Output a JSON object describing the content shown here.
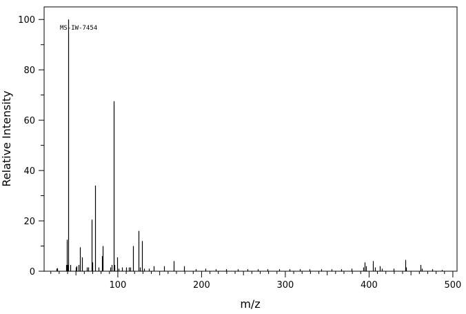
{
  "chart_data": {
    "type": "bar",
    "title": "",
    "annotation": "MS-IW-7454",
    "xlabel": "m/z",
    "ylabel": "Relative Intensity",
    "xlim": [
      12,
      505
    ],
    "ylim": [
      0,
      105
    ],
    "xticks": [
      100,
      200,
      300,
      400,
      500
    ],
    "yticks": [
      0,
      20,
      40,
      60,
      80,
      100
    ],
    "grid": false,
    "peaks": [
      {
        "x": 27,
        "y": 1.0
      },
      {
        "x": 28,
        "y": 1.2
      },
      {
        "x": 38,
        "y": 2.5
      },
      {
        "x": 39,
        "y": 12.5
      },
      {
        "x": 40,
        "y": 2.5
      },
      {
        "x": 41,
        "y": 100
      },
      {
        "x": 43,
        "y": 2.5
      },
      {
        "x": 50,
        "y": 1.5
      },
      {
        "x": 51,
        "y": 2.0
      },
      {
        "x": 53,
        "y": 2.5
      },
      {
        "x": 55,
        "y": 9.5
      },
      {
        "x": 57,
        "y": 5.5
      },
      {
        "x": 63,
        "y": 1.5
      },
      {
        "x": 65,
        "y": 1.5
      },
      {
        "x": 69,
        "y": 20.5
      },
      {
        "x": 70,
        "y": 3.5
      },
      {
        "x": 73,
        "y": 34.0
      },
      {
        "x": 77,
        "y": 1.5
      },
      {
        "x": 81,
        "y": 6.0
      },
      {
        "x": 82,
        "y": 10.0
      },
      {
        "x": 91,
        "y": 1.5
      },
      {
        "x": 93,
        "y": 2.5
      },
      {
        "x": 95,
        "y": 67.5
      },
      {
        "x": 96,
        "y": 2.5
      },
      {
        "x": 99,
        "y": 5.5
      },
      {
        "x": 101,
        "y": 1.0
      },
      {
        "x": 105,
        "y": 1.5
      },
      {
        "x": 110,
        "y": 1.5
      },
      {
        "x": 113,
        "y": 1.5
      },
      {
        "x": 115,
        "y": 1.5
      },
      {
        "x": 118,
        "y": 10.0
      },
      {
        "x": 125,
        "y": 16.0
      },
      {
        "x": 126,
        "y": 1.5
      },
      {
        "x": 129,
        "y": 12.0
      },
      {
        "x": 131,
        "y": 1.0
      },
      {
        "x": 137,
        "y": 1.0
      },
      {
        "x": 143,
        "y": 2.0
      },
      {
        "x": 155,
        "y": 2.0
      },
      {
        "x": 167,
        "y": 4.0
      },
      {
        "x": 179,
        "y": 2.0
      },
      {
        "x": 193,
        "y": 0.8
      },
      {
        "x": 205,
        "y": 1.0
      },
      {
        "x": 217,
        "y": 0.8
      },
      {
        "x": 229,
        "y": 0.8
      },
      {
        "x": 243,
        "y": 0.8
      },
      {
        "x": 255,
        "y": 0.8
      },
      {
        "x": 267,
        "y": 0.8
      },
      {
        "x": 279,
        "y": 0.8
      },
      {
        "x": 293,
        "y": 0.8
      },
      {
        "x": 305,
        "y": 0.8
      },
      {
        "x": 317,
        "y": 0.8
      },
      {
        "x": 329,
        "y": 0.8
      },
      {
        "x": 343,
        "y": 0.8
      },
      {
        "x": 355,
        "y": 0.8
      },
      {
        "x": 367,
        "y": 0.8
      },
      {
        "x": 379,
        "y": 1.0
      },
      {
        "x": 393,
        "y": 1.5
      },
      {
        "x": 395,
        "y": 3.5
      },
      {
        "x": 396,
        "y": 2.0
      },
      {
        "x": 405,
        "y": 4.0
      },
      {
        "x": 407,
        "y": 1.5
      },
      {
        "x": 413,
        "y": 2.0
      },
      {
        "x": 415,
        "y": 1.0
      },
      {
        "x": 429,
        "y": 1.0
      },
      {
        "x": 443,
        "y": 4.5
      },
      {
        "x": 444,
        "y": 1.5
      },
      {
        "x": 461,
        "y": 2.5
      },
      {
        "x": 463,
        "y": 1.0
      },
      {
        "x": 475,
        "y": 0.8
      },
      {
        "x": 487,
        "y": 0.5
      }
    ]
  }
}
